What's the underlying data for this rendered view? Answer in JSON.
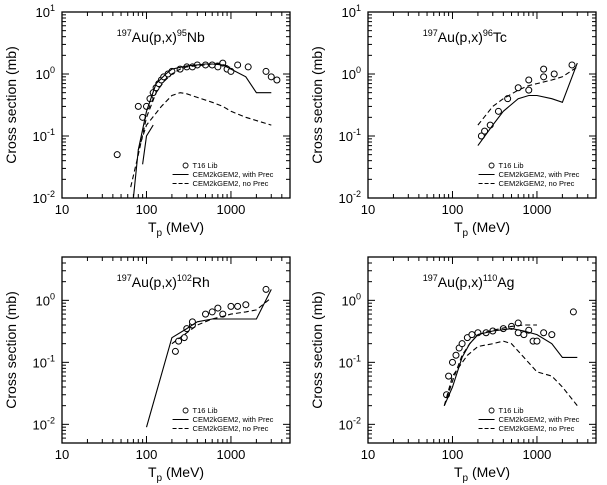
{
  "chart_data": [
    {
      "type": "line",
      "reaction": {
        "target_mass": "197",
        "target": "Au(p,x)",
        "product_mass": "95",
        "product": "Nb"
      },
      "xlabel": "T",
      "xlabel_sub": "p",
      "xlabel_unit": " (MeV)",
      "ylabel": "Cross section (mb)",
      "xscale": "log",
      "yscale": "log",
      "xlim": [
        10,
        5000
      ],
      "ylim": [
        0.01,
        10
      ],
      "yticks": [
        {
          "value": 0.01,
          "mantissa": "10",
          "exp": "-2"
        },
        {
          "value": 0.1,
          "mantissa": "10",
          "exp": "-1"
        },
        {
          "value": 1,
          "mantissa": "10",
          "exp": "0"
        },
        {
          "value": 10,
          "mantissa": "10",
          "exp": "1"
        }
      ],
      "xticks": [
        {
          "value": 10,
          "label": "10"
        },
        {
          "value": 100,
          "label": "100"
        },
        {
          "value": 1000,
          "label": "1000"
        }
      ],
      "legend_position": "bottom-right",
      "legend": [
        "T16 Lib",
        "CEM2kGEM2, with Prec",
        "CEM2kGEM2, no Prec"
      ],
      "series": [
        {
          "name": "T16 Lib",
          "kind": "points",
          "points": [
            [
              45,
              0.05
            ],
            [
              80,
              0.3
            ],
            [
              90,
              0.2
            ],
            [
              100,
              0.3
            ],
            [
              110,
              0.4
            ],
            [
              120,
              0.5
            ],
            [
              130,
              0.6
            ],
            [
              140,
              0.7
            ],
            [
              150,
              0.8
            ],
            [
              160,
              0.9
            ],
            [
              180,
              1.0
            ],
            [
              200,
              1.1
            ],
            [
              250,
              1.2
            ],
            [
              300,
              1.3
            ],
            [
              350,
              1.3
            ],
            [
              400,
              1.4
            ],
            [
              500,
              1.4
            ],
            [
              600,
              1.4
            ],
            [
              700,
              1.3
            ],
            [
              800,
              1.5
            ],
            [
              900,
              1.2
            ],
            [
              1000,
              1.1
            ],
            [
              1200,
              1.4
            ],
            [
              1600,
              1.3
            ],
            [
              2600,
              1.1
            ],
            [
              3000,
              0.9
            ],
            [
              3500,
              0.8
            ]
          ]
        },
        {
          "name": "CEM2kGEM2, with Prec",
          "kind": "solid",
          "points": [
            [
              70,
              0.01
            ],
            [
              80,
              0.06
            ],
            [
              100,
              0.25
            ],
            [
              130,
              0.7
            ],
            [
              170,
              1.0
            ],
            [
              200,
              1.2
            ],
            [
              300,
              1.35
            ],
            [
              400,
              1.4
            ],
            [
              500,
              1.45
            ],
            [
              600,
              1.45
            ],
            [
              800,
              1.4
            ],
            [
              1000,
              1.2
            ],
            [
              1500,
              0.9
            ],
            [
              2000,
              0.5
            ],
            [
              3000,
              0.5
            ]
          ]
        },
        {
          "name": "CEM2kGEM2, no Prec",
          "kind": "dashed",
          "points": [
            [
              65,
              0.015
            ],
            [
              80,
              0.05
            ],
            [
              100,
              0.2
            ],
            [
              130,
              0.5
            ],
            [
              160,
              0.75
            ],
            [
              200,
              1.0
            ],
            [
              250,
              1.2
            ],
            [
              300,
              1.3
            ],
            [
              500,
              1.4
            ],
            [
              700,
              1.5
            ],
            [
              1000,
              1.3
            ]
          ]
        },
        {
          "name": "",
          "kind": "dashed",
          "points": [
            [
              80,
              0.06
            ],
            [
              100,
              0.15
            ],
            [
              150,
              0.3
            ],
            [
              200,
              0.45
            ],
            [
              250,
              0.5
            ],
            [
              300,
              0.48
            ],
            [
              400,
              0.42
            ],
            [
              600,
              0.35
            ],
            [
              800,
              0.3
            ],
            [
              1000,
              0.25
            ],
            [
              1500,
              0.2
            ],
            [
              3000,
              0.15
            ]
          ]
        },
        {
          "name": "",
          "kind": "solid",
          "points": [
            [
              90,
              0.035
            ],
            [
              100,
              0.1
            ],
            [
              120,
              0.15
            ]
          ]
        }
      ]
    },
    {
      "type": "line",
      "reaction": {
        "target_mass": "197",
        "target": "Au(p,x)",
        "product_mass": "96",
        "product": "Tc"
      },
      "xlabel": "T",
      "xlabel_sub": "p",
      "xlabel_unit": " (MeV)",
      "ylabel": "Cross section (mb)",
      "xscale": "log",
      "yscale": "log",
      "xlim": [
        10,
        5000
      ],
      "ylim": [
        0.01,
        10
      ],
      "yticks": [
        {
          "value": 0.01,
          "mantissa": "10",
          "exp": "-2"
        },
        {
          "value": 0.1,
          "mantissa": "10",
          "exp": "-1"
        },
        {
          "value": 1,
          "mantissa": "10",
          "exp": "0"
        },
        {
          "value": 10,
          "mantissa": "10",
          "exp": "1"
        }
      ],
      "xticks": [
        {
          "value": 10,
          "label": "10"
        },
        {
          "value": 100,
          "label": "100"
        },
        {
          "value": 1000,
          "label": "1000"
        }
      ],
      "legend_position": "bottom-right",
      "legend": [
        "T16 Lib",
        "CEM2kGEM2, with Prec",
        "CEM2kGEM2, no Prec"
      ],
      "series": [
        {
          "name": "T16 Lib",
          "kind": "points",
          "points": [
            [
              220,
              0.1
            ],
            [
              240,
              0.12
            ],
            [
              280,
              0.15
            ],
            [
              350,
              0.25
            ],
            [
              450,
              0.4
            ],
            [
              600,
              0.6
            ],
            [
              800,
              0.55
            ],
            [
              800,
              0.8
            ],
            [
              1200,
              0.9
            ],
            [
              1200,
              1.2
            ],
            [
              1600,
              1.0
            ],
            [
              2600,
              1.4
            ]
          ]
        },
        {
          "name": "CEM2kGEM2, with Prec",
          "kind": "solid",
          "points": [
            [
              200,
              0.07
            ],
            [
              300,
              0.15
            ],
            [
              400,
              0.25
            ],
            [
              600,
              0.4
            ],
            [
              800,
              0.45
            ],
            [
              1000,
              0.45
            ],
            [
              1500,
              0.4
            ],
            [
              2000,
              0.35
            ],
            [
              3000,
              1.5
            ]
          ]
        },
        {
          "name": "CEM2kGEM2, no Prec",
          "kind": "dashed",
          "points": [
            [
              200,
              0.15
            ],
            [
              300,
              0.3
            ],
            [
              400,
              0.4
            ],
            [
              600,
              0.55
            ],
            [
              800,
              0.65
            ],
            [
              1000,
              0.7
            ],
            [
              1500,
              0.8
            ],
            [
              2000,
              0.9
            ],
            [
              3000,
              1.3
            ]
          ]
        }
      ]
    },
    {
      "type": "line",
      "reaction": {
        "target_mass": "197",
        "target": "Au(p,x)",
        "product_mass": "102",
        "product": "Rh"
      },
      "xlabel": "T",
      "xlabel_sub": "p",
      "xlabel_unit": " (MeV)",
      "ylabel": "Cross section (mb)",
      "xscale": "log",
      "yscale": "log",
      "xlim": [
        10,
        5000
      ],
      "ylim": [
        0.005,
        5
      ],
      "yticks": [
        {
          "value": 0.01,
          "mantissa": "10",
          "exp": "-2"
        },
        {
          "value": 0.1,
          "mantissa": "10",
          "exp": "-1"
        },
        {
          "value": 1,
          "mantissa": "10",
          "exp": "0"
        }
      ],
      "xticks": [
        {
          "value": 10,
          "label": "10"
        },
        {
          "value": 100,
          "label": "100"
        },
        {
          "value": 1000,
          "label": "1000"
        }
      ],
      "legend_position": "bottom-right",
      "legend": [
        "T16 Lib",
        "CEM2kGEM2, with Prec",
        "CEM2kGEM2, no Prec"
      ],
      "series": [
        {
          "name": "T16 Lib",
          "kind": "points",
          "points": [
            [
              220,
              0.15
            ],
            [
              240,
              0.22
            ],
            [
              280,
              0.25
            ],
            [
              300,
              0.35
            ],
            [
              350,
              0.4
            ],
            [
              350,
              0.45
            ],
            [
              500,
              0.6
            ],
            [
              600,
              0.65
            ],
            [
              700,
              0.75
            ],
            [
              800,
              0.6
            ],
            [
              1000,
              0.8
            ],
            [
              1200,
              0.8
            ],
            [
              1500,
              0.85
            ],
            [
              2600,
              1.5
            ]
          ]
        },
        {
          "name": "CEM2kGEM2, with Prec",
          "kind": "solid",
          "points": [
            [
              100,
              0.009
            ],
            [
              200,
              0.25
            ],
            [
              300,
              0.35
            ],
            [
              400,
              0.45
            ],
            [
              600,
              0.5
            ],
            [
              800,
              0.5
            ],
            [
              1000,
              0.5
            ],
            [
              1500,
              0.5
            ],
            [
              2000,
              0.5
            ],
            [
              3000,
              1.5
            ]
          ]
        },
        {
          "name": "CEM2kGEM2, no Prec",
          "kind": "dashed",
          "points": [
            [
              200,
              0.2
            ],
            [
              300,
              0.3
            ],
            [
              400,
              0.4
            ],
            [
              600,
              0.5
            ],
            [
              800,
              0.55
            ],
            [
              1000,
              0.6
            ],
            [
              1500,
              0.65
            ],
            [
              2000,
              0.7
            ],
            [
              3000,
              1.1
            ]
          ]
        }
      ]
    },
    {
      "type": "line",
      "reaction": {
        "target_mass": "197",
        "target": "Au(p,x)",
        "product_mass": "110",
        "product": "Ag"
      },
      "xlabel": "T",
      "xlabel_sub": "p",
      "xlabel_unit": " (MeV)",
      "ylabel": "Cross section (mb)",
      "xscale": "log",
      "yscale": "log",
      "xlim": [
        10,
        5000
      ],
      "ylim": [
        0.005,
        5
      ],
      "yticks": [
        {
          "value": 0.01,
          "mantissa": "10",
          "exp": "-2"
        },
        {
          "value": 0.1,
          "mantissa": "10",
          "exp": "-1"
        },
        {
          "value": 1,
          "mantissa": "10",
          "exp": "0"
        }
      ],
      "xticks": [
        {
          "value": 10,
          "label": "10"
        },
        {
          "value": 100,
          "label": "100"
        },
        {
          "value": 1000,
          "label": "1000"
        }
      ],
      "legend_position": "bottom-right",
      "legend": [
        "T16 Lib",
        "CEM2kGEM2, with Prec",
        "CEM2kGEM2, no Prec"
      ],
      "series": [
        {
          "name": "T16 Lib",
          "kind": "points",
          "points": [
            [
              85,
              0.03
            ],
            [
              90,
              0.06
            ],
            [
              100,
              0.1
            ],
            [
              110,
              0.13
            ],
            [
              120,
              0.17
            ],
            [
              130,
              0.2
            ],
            [
              150,
              0.25
            ],
            [
              170,
              0.28
            ],
            [
              200,
              0.3
            ],
            [
              250,
              0.3
            ],
            [
              300,
              0.32
            ],
            [
              400,
              0.35
            ],
            [
              500,
              0.38
            ],
            [
              600,
              0.43
            ],
            [
              600,
              0.3
            ],
            [
              700,
              0.28
            ],
            [
              800,
              0.33
            ],
            [
              900,
              0.22
            ],
            [
              1000,
              0.22
            ],
            [
              1200,
              0.3
            ],
            [
              1500,
              0.28
            ],
            [
              2700,
              0.65
            ]
          ]
        },
        {
          "name": "CEM2kGEM2, with Prec",
          "kind": "solid",
          "points": [
            [
              80,
              0.02
            ],
            [
              100,
              0.04
            ],
            [
              130,
              0.12
            ],
            [
              160,
              0.2
            ],
            [
              200,
              0.28
            ],
            [
              300,
              0.32
            ],
            [
              500,
              0.35
            ],
            [
              700,
              0.32
            ],
            [
              1000,
              0.28
            ],
            [
              1500,
              0.2
            ],
            [
              2000,
              0.12
            ],
            [
              3000,
              0.12
            ]
          ]
        },
        {
          "name": "CEM2kGEM2, no Prec",
          "kind": "dashed",
          "points": [
            [
              80,
              0.02
            ],
            [
              100,
              0.05
            ],
            [
              130,
              0.13
            ],
            [
              160,
              0.2
            ],
            [
              200,
              0.28
            ],
            [
              300,
              0.33
            ],
            [
              500,
              0.38
            ],
            [
              700,
              0.4
            ],
            [
              1000,
              0.4
            ]
          ]
        },
        {
          "name": "",
          "kind": "dashed",
          "points": [
            [
              80,
              0.02
            ],
            [
              100,
              0.06
            ],
            [
              150,
              0.13
            ],
            [
              200,
              0.18
            ],
            [
              300,
              0.2
            ],
            [
              400,
              0.22
            ],
            [
              500,
              0.2
            ],
            [
              700,
              0.12
            ],
            [
              1000,
              0.07
            ],
            [
              1500,
              0.06
            ],
            [
              2000,
              0.04
            ],
            [
              3000,
              0.02
            ]
          ]
        }
      ]
    }
  ]
}
